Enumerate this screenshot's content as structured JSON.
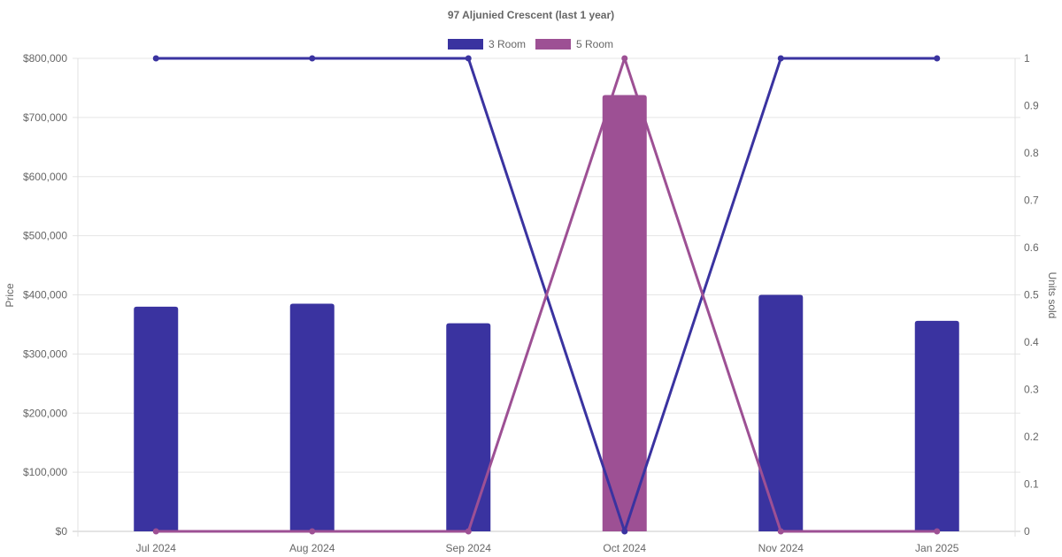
{
  "chart_data": {
    "type": "bar",
    "title": "97 Aljunied Crescent (last 1 year)",
    "categories": [
      "Jul 2024",
      "Aug 2024",
      "Sep 2024",
      "Oct 2024",
      "Nov 2024",
      "Jan 2025"
    ],
    "ylabel": "Price",
    "y2label": "Units sold",
    "ylim": [
      0,
      800000
    ],
    "y2lim": [
      0,
      1
    ],
    "y_ticks": [
      "$0",
      "$100,000",
      "$200,000",
      "$300,000",
      "$400,000",
      "$500,000",
      "$600,000",
      "$700,000",
      "$800,000"
    ],
    "y2_ticks": [
      "0",
      "0.1",
      "0.2",
      "0.3",
      "0.4",
      "0.5",
      "0.6",
      "0.7",
      "0.8",
      "0.9",
      "1"
    ],
    "grid": true,
    "legend_position": "top",
    "series": [
      {
        "name": "3 Room",
        "color": "#3a33a0",
        "price": [
          380000,
          385000,
          352000,
          null,
          400000,
          356000
        ],
        "units_sold": [
          1,
          1,
          1,
          0,
          1,
          1
        ]
      },
      {
        "name": "5 Room",
        "color": "#9d5094",
        "price": [
          null,
          null,
          null,
          738000,
          null,
          null
        ],
        "units_sold": [
          0,
          0,
          0,
          1,
          0,
          0
        ]
      }
    ]
  }
}
